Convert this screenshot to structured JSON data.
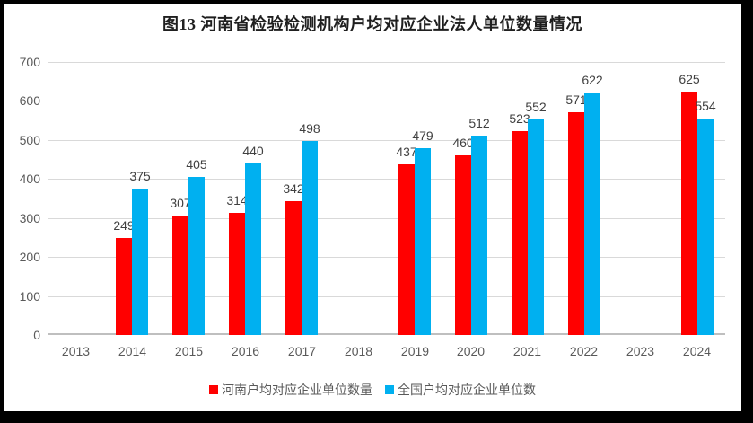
{
  "frame": {
    "border_color": "#000000",
    "canvas_background": "#ffffff"
  },
  "chart_data": {
    "type": "bar",
    "title": "图13  河南省检验检测机构户均对应企业法人单位数量情况",
    "categories": [
      "2013",
      "2014",
      "2015",
      "2016",
      "2017",
      "2018",
      "2019",
      "2020",
      "2021",
      "2022",
      "2023",
      "2024"
    ],
    "series": [
      {
        "key": "henan",
        "name": "河南户均对应企业单位数量",
        "color": "#FF0000",
        "values": [
          null,
          249,
          307,
          314,
          342,
          null,
          437,
          460,
          523,
          571,
          null,
          625
        ]
      },
      {
        "key": "national",
        "name": "全国户均对应企业单位数",
        "color": "#00B0F0",
        "values": [
          null,
          375,
          405,
          440,
          498,
          null,
          479,
          512,
          552,
          622,
          null,
          554
        ]
      }
    ],
    "ylim": [
      0,
      700
    ],
    "yticks": [
      0,
      100,
      200,
      300,
      400,
      500,
      600,
      700
    ],
    "grid": true,
    "legend_position": "bottom",
    "data_labels": true
  },
  "styles": {
    "gridline_color": "#d9d9d9",
    "axis_line_color": "#bfbfbf",
    "tick_label_color": "#595959",
    "data_label_color": "#404040",
    "title_color": "#1f1f1f",
    "legend_text_color": "#595959"
  }
}
